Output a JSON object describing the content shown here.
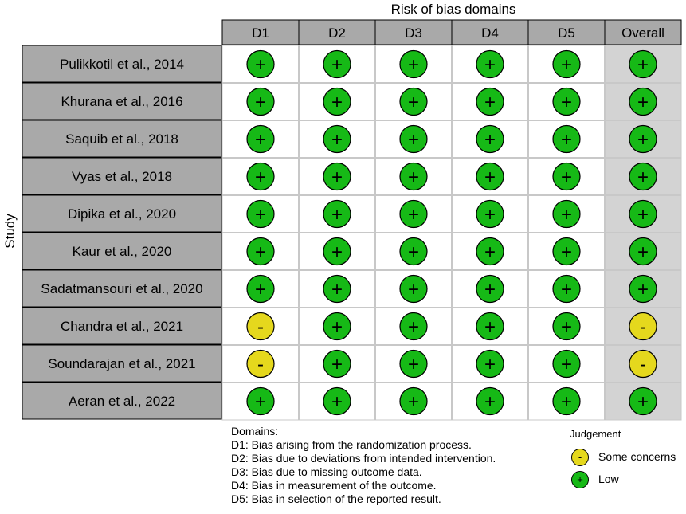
{
  "title": "Risk of bias domains",
  "y_axis_label": "Study",
  "columns": [
    "D1",
    "D2",
    "D3",
    "D4",
    "D5",
    "Overall"
  ],
  "judgement_symbols": {
    "low": "+",
    "some": "-"
  },
  "colors": {
    "low": "#16b916",
    "some": "#e5d81d",
    "header_bg": "#a9a9a9",
    "study_bg": "#a9a9a9",
    "overall_bg": "#d3d3d3",
    "grid_line": "#c8c8c8"
  },
  "studies": [
    {
      "name": "Pulikkotil et al., 2014",
      "judgements": [
        "low",
        "low",
        "low",
        "low",
        "low",
        "low"
      ]
    },
    {
      "name": "Khurana et al., 2016",
      "judgements": [
        "low",
        "low",
        "low",
        "low",
        "low",
        "low"
      ]
    },
    {
      "name": "Saquib et al., 2018",
      "judgements": [
        "low",
        "low",
        "low",
        "low",
        "low",
        "low"
      ]
    },
    {
      "name": "Vyas et al., 2018",
      "judgements": [
        "low",
        "low",
        "low",
        "low",
        "low",
        "low"
      ]
    },
    {
      "name": "Dipika et al., 2020",
      "judgements": [
        "low",
        "low",
        "low",
        "low",
        "low",
        "low"
      ]
    },
    {
      "name": "Kaur et al., 2020",
      "judgements": [
        "low",
        "low",
        "low",
        "low",
        "low",
        "low"
      ]
    },
    {
      "name": "Sadatmansouri et al., 2020",
      "judgements": [
        "low",
        "low",
        "low",
        "low",
        "low",
        "low"
      ]
    },
    {
      "name": "Chandra et al., 2021",
      "judgements": [
        "some",
        "low",
        "low",
        "low",
        "low",
        "some"
      ]
    },
    {
      "name": "Soundarajan et al., 2021",
      "judgements": [
        "some",
        "low",
        "low",
        "low",
        "low",
        "some"
      ]
    },
    {
      "name": "Aeran et al., 2022",
      "judgements": [
        "low",
        "low",
        "low",
        "low",
        "low",
        "low"
      ]
    }
  ],
  "domains_legend": {
    "heading": "Domains:",
    "items": [
      "D1: Bias arising from the randomization process.",
      "D2: Bias due to deviations from intended intervention.",
      "D3: Bias due to missing outcome data.",
      "D4: Bias in measurement of the outcome.",
      "D5: Bias in selection of the reported result."
    ]
  },
  "judgement_legend": {
    "title": "Judgement",
    "items": [
      {
        "key": "some",
        "symbol": "-",
        "label": "Some concerns"
      },
      {
        "key": "low",
        "symbol": "+",
        "label": "Low"
      }
    ]
  }
}
